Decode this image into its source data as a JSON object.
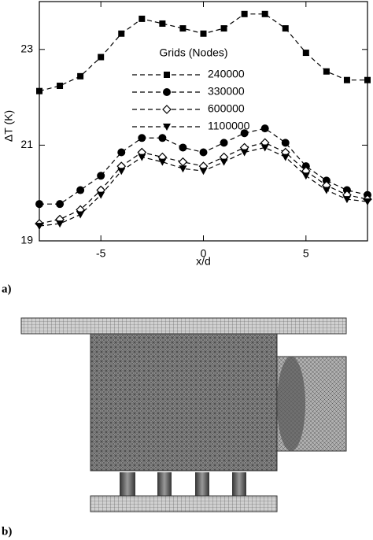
{
  "figure": {
    "panel_a_label": "a)",
    "panel_b_label": "b)"
  },
  "chart_data": {
    "type": "line",
    "x_label": "x/d",
    "y_label": "ΔT (K)",
    "legend_title": "Grids (Nodes)",
    "x": [
      -8,
      -7,
      -6,
      -5,
      -4,
      -3,
      -2,
      -1,
      0,
      1,
      2,
      3,
      4,
      5,
      6,
      7,
      8
    ],
    "xlim": [
      -8,
      8
    ],
    "xticks": [
      -5,
      0,
      5
    ],
    "ylim": [
      19,
      24
    ],
    "yticks": [
      19,
      21,
      23
    ],
    "line_style": "dashed",
    "series": [
      {
        "name": "240000",
        "color": "#000000",
        "marker": "square",
        "values": [
          22.13,
          22.24,
          22.44,
          22.84,
          23.33,
          23.64,
          23.54,
          23.44,
          23.33,
          23.44,
          23.74,
          23.74,
          23.44,
          22.93,
          22.54,
          22.36,
          22.36
        ]
      },
      {
        "name": "330000",
        "color": "#000000",
        "marker": "circle",
        "values": [
          19.77,
          19.77,
          20.06,
          20.36,
          20.85,
          21.15,
          21.15,
          20.95,
          20.85,
          21.05,
          21.25,
          21.35,
          21.05,
          20.56,
          20.26,
          20.06,
          19.96
        ]
      },
      {
        "name": "600000",
        "color": "#000000",
        "marker": "diamond-open",
        "values": [
          19.36,
          19.45,
          19.65,
          20.06,
          20.56,
          20.85,
          20.75,
          20.65,
          20.56,
          20.75,
          20.95,
          21.05,
          20.85,
          20.46,
          20.16,
          19.96,
          19.87
        ]
      },
      {
        "name": "1100000",
        "color": "#000000",
        "marker": "triangle-down",
        "values": [
          19.31,
          19.36,
          19.55,
          19.96,
          20.46,
          20.75,
          20.65,
          20.51,
          20.46,
          20.65,
          20.85,
          20.95,
          20.75,
          20.36,
          20.06,
          19.87,
          19.82
        ]
      }
    ]
  }
}
